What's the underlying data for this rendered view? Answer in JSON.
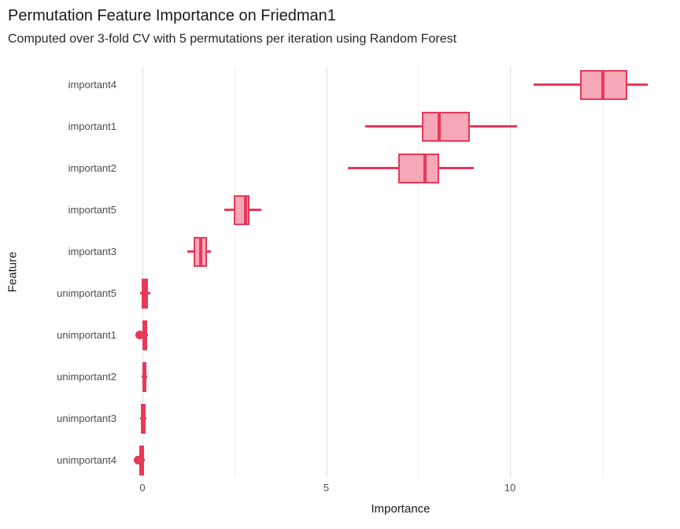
{
  "header": {
    "title": "Permutation Feature Importance on Friedman1",
    "subtitle": "Computed over 3-fold CV with 5 permutations per iteration using Random Forest"
  },
  "chart_data": {
    "type": "boxplot",
    "orientation": "horizontal",
    "title": "Permutation Feature Importance on Friedman1",
    "subtitle": "Computed over 3-fold CV with 5 permutations per iteration using Random Forest",
    "xlabel": "Importance",
    "ylabel": "Feature",
    "xlim": [
      -0.5,
      14.5
    ],
    "x_ticks": [
      0,
      5,
      10
    ],
    "x_minor_ticks": [
      2.5,
      7.5,
      12.5
    ],
    "grid": "on",
    "legend": "none",
    "colors": {
      "box_stroke": "#e8395a",
      "box_fill": "#f6a7b8",
      "grid_major": "#e3e3e3",
      "grid_minor": "#f1f1f1"
    },
    "rows": [
      {
        "label": "important4",
        "whisker_low": 10.64,
        "q1": 11.9,
        "median": 12.53,
        "q3": 13.2,
        "whisker_high": 13.75,
        "outliers": []
      },
      {
        "label": "important1",
        "whisker_low": 6.06,
        "q1": 7.6,
        "median": 8.07,
        "q3": 8.9,
        "whisker_high": 10.19,
        "outliers": []
      },
      {
        "label": "important2",
        "whisker_low": 5.59,
        "q1": 6.96,
        "median": 7.69,
        "q3": 8.07,
        "whisker_high": 9.01,
        "outliers": []
      },
      {
        "label": "important5",
        "whisker_low": 2.23,
        "q1": 2.48,
        "median": 2.8,
        "q3": 2.91,
        "whisker_high": 3.23,
        "outliers": []
      },
      {
        "label": "important3",
        "whisker_low": 1.22,
        "q1": 1.39,
        "median": 1.58,
        "q3": 1.76,
        "whisker_high": 1.86,
        "outliers": []
      },
      {
        "label": "unimportant5",
        "whisker_low": -0.06,
        "q1": -0.02,
        "median": 0.07,
        "q3": 0.15,
        "whisker_high": 0.21,
        "outliers": []
      },
      {
        "label": "unimportant1",
        "whisker_low": -0.02,
        "q1": 0.0,
        "median": 0.06,
        "q3": 0.13,
        "whisker_high": 0.15,
        "outliers": [
          -0.07
        ]
      },
      {
        "label": "unimportant2",
        "whisker_low": -0.02,
        "q1": -0.01,
        "median": 0.05,
        "q3": 0.11,
        "whisker_high": 0.13,
        "outliers": []
      },
      {
        "label": "unimportant3",
        "whisker_low": -0.06,
        "q1": -0.05,
        "median": 0.01,
        "q3": 0.08,
        "whisker_high": 0.09,
        "outliers": []
      },
      {
        "label": "unimportant4",
        "whisker_low": -0.1,
        "q1": -0.09,
        "median": -0.02,
        "q3": 0.04,
        "whisker_high": 0.06,
        "outliers": [
          -0.11
        ]
      }
    ]
  }
}
